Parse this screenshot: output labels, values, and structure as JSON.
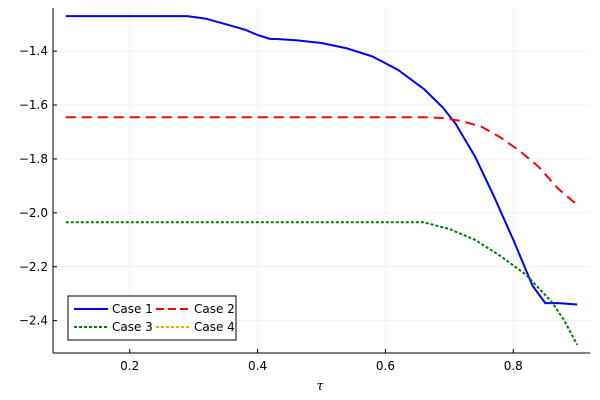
{
  "chart_data": {
    "type": "line",
    "xlabel": "τ",
    "ylabel": "",
    "xlim": [
      0.08,
      0.92
    ],
    "ylim": [
      -2.52,
      -1.24
    ],
    "xticks": [
      0.2,
      0.4,
      0.6,
      0.8
    ],
    "xtick_labels": [
      "0.2",
      "0.4",
      "0.6",
      "0.8"
    ],
    "yticks": [
      -1.4,
      -1.6,
      -1.8,
      -2.0,
      -2.2,
      -2.4
    ],
    "ytick_labels": [
      "−1.4",
      "−1.6",
      "−1.8",
      "−2.0",
      "−2.2",
      "−2.4"
    ],
    "grid": true,
    "legend_position": "bottom-left",
    "legend_columns": 2,
    "series": [
      {
        "name": "Case 1",
        "color": "#0000ff",
        "style": "solid",
        "x": [
          0.1,
          0.2,
          0.29,
          0.32,
          0.35,
          0.38,
          0.4,
          0.42,
          0.43,
          0.46,
          0.5,
          0.54,
          0.58,
          0.62,
          0.66,
          0.69,
          0.71,
          0.74,
          0.77,
          0.8,
          0.83,
          0.85,
          0.87,
          0.9
        ],
        "y": [
          -1.27,
          -1.27,
          -1.27,
          -1.28,
          -1.3,
          -1.32,
          -1.34,
          -1.355,
          -1.355,
          -1.36,
          -1.37,
          -1.39,
          -1.42,
          -1.47,
          -1.54,
          -1.61,
          -1.67,
          -1.79,
          -1.94,
          -2.1,
          -2.27,
          -2.335,
          -2.335,
          -2.34
        ]
      },
      {
        "name": "Case 2",
        "color": "#ff0000",
        "style": "dash",
        "x": [
          0.1,
          0.3,
          0.5,
          0.6,
          0.66,
          0.69,
          0.72,
          0.75,
          0.78,
          0.81,
          0.84,
          0.87,
          0.9
        ],
        "y": [
          -1.645,
          -1.645,
          -1.645,
          -1.645,
          -1.645,
          -1.648,
          -1.66,
          -1.68,
          -1.72,
          -1.77,
          -1.83,
          -1.91,
          -1.97
        ]
      },
      {
        "name": "Case 3",
        "color": "#008000",
        "style": "dot",
        "x": [
          0.1,
          0.3,
          0.5,
          0.6,
          0.66,
          0.7,
          0.74,
          0.78,
          0.82,
          0.84,
          0.86,
          0.88,
          0.9
        ],
        "y": [
          -2.035,
          -2.035,
          -2.035,
          -2.035,
          -2.035,
          -2.06,
          -2.1,
          -2.16,
          -2.23,
          -2.28,
          -2.33,
          -2.4,
          -2.49
        ]
      },
      {
        "name": "Case 4",
        "color": "#ffa500",
        "style": "dot",
        "x": [],
        "y": []
      }
    ]
  }
}
